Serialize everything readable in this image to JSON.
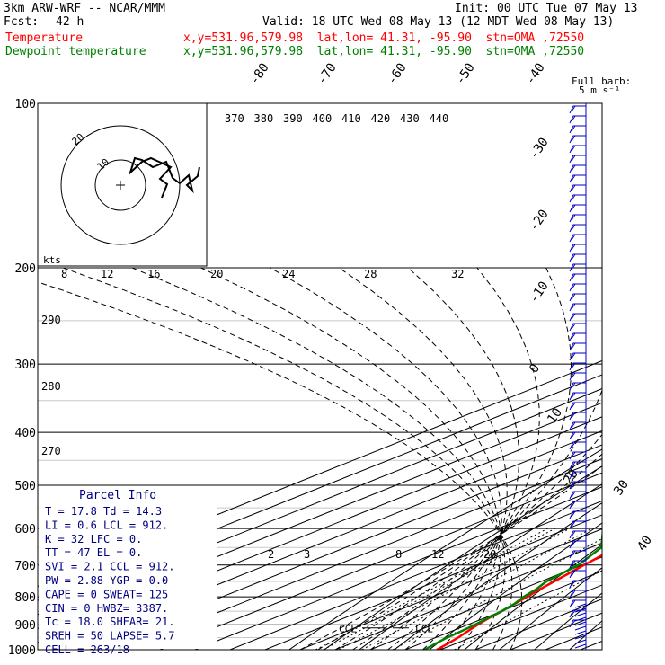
{
  "header": {
    "model": "3km ARW-WRF -- NCAR/MMM",
    "init": "Init: 00 UTC Tue 07 May 13",
    "fcst_label": "Fcst:",
    "fcst_value": "42 h",
    "valid": "Valid: 18 UTC Wed 08 May 13 (12 MDT Wed 08 May 13)",
    "temp_label": "Temperature",
    "temp_info": "x,y=531.96,579.98  lat,lon= 41.31, -95.90  stn=OMA ,72550",
    "dew_label": "Dewpoint temperature",
    "dew_info": "x,y=531.96,579.98  lat,lon= 41.31, -95.90  stn=OMA ,72550"
  },
  "colors": {
    "temperature": "#ff0000",
    "dewpoint": "#008000",
    "parcel_text": "#000080"
  },
  "barb_legend": {
    "title": "Full barb:",
    "value": "5 m s⁻¹"
  },
  "hodograph": {
    "units": "kts",
    "ring_labels": [
      "10",
      "20"
    ]
  },
  "parcel_info": {
    "title": "Parcel Info",
    "rows": [
      "T  =    17.8  Td =  14.3",
      "LI =     0.6  LCL =  912.",
      "K  =      32  LFC =    0.",
      "TT =      47  EL  =    0.",
      "SVI =    2.1  CCL =  912.",
      "PW =    2.88  YGP =   0.0",
      "CAPE =     0  SWEAT=  125",
      "CIN =      0  HWBZ= 3387.",
      "Tc =    18.0  SHEAR=  21.",
      "SREH =    50  LAPSE=  5.7",
      "CELL = 263/18"
    ]
  },
  "chart_data": {
    "type": "line",
    "diagram": "skew-T log-p",
    "y_axis": {
      "scale": "log",
      "range": [
        1000,
        100
      ],
      "tick_labels": [
        "100",
        "200",
        "300",
        "400",
        "500",
        "600",
        "700",
        "800",
        "900",
        "1000"
      ]
    },
    "isotherm_labels": [
      "-80",
      "-70",
      "-60",
      "-50",
      "-40",
      "-30",
      "-20",
      "-10",
      "0",
      "10",
      "20",
      "30",
      "40"
    ],
    "theta_labels": [
      "370",
      "380",
      "390",
      "400",
      "410",
      "420",
      "430",
      "440"
    ],
    "theta_side_labels": [
      "290",
      "280",
      "270"
    ],
    "mixing_ratio_labels": [
      "8",
      "12",
      "16",
      "20",
      "24",
      "28",
      "32"
    ],
    "mixing_ratio_labels_low": [
      "2",
      "3",
      "8",
      "12",
      "20"
    ],
    "annotations": [
      "CCL",
      "LCL"
    ],
    "series": [
      {
        "name": "Temperature",
        "points": [
          [
            1000,
            19
          ],
          [
            975,
            17.8
          ],
          [
            950,
            16.4
          ],
          [
            925,
            14.6
          ],
          [
            912,
            13.7
          ],
          [
            900,
            12.8
          ],
          [
            875,
            11.3
          ],
          [
            850,
            10
          ],
          [
            825,
            8.6
          ],
          [
            800,
            7
          ],
          [
            775,
            5.3
          ],
          [
            750,
            3.8
          ],
          [
            725,
            2.2
          ],
          [
            700,
            0.6
          ],
          [
            650,
            -2.6
          ],
          [
            600,
            -6
          ],
          [
            550,
            -9.8
          ],
          [
            500,
            -14.2
          ],
          [
            450,
            -19.4
          ],
          [
            400,
            -25.2
          ],
          [
            350,
            -31.8
          ],
          [
            300,
            -39.4
          ],
          [
            275,
            -43.8
          ],
          [
            250,
            -48
          ],
          [
            225,
            -51.8
          ],
          [
            210,
            -53.5
          ],
          [
            200,
            -54.5
          ],
          [
            180,
            -56
          ],
          [
            160,
            -57
          ],
          [
            140,
            -58
          ],
          [
            125,
            -58.8
          ],
          [
            110,
            -60
          ],
          [
            100,
            -61
          ]
        ]
      },
      {
        "name": "Dewpoint temperature",
        "points": [
          [
            1000,
            15.5
          ],
          [
            975,
            14.3
          ],
          [
            950,
            13.2
          ],
          [
            925,
            12.8
          ],
          [
            900,
            12
          ],
          [
            875,
            11
          ],
          [
            850,
            10
          ],
          [
            825,
            8.5
          ],
          [
            800,
            6
          ],
          [
            775,
            4.2
          ],
          [
            750,
            1.6
          ],
          [
            700,
            -1
          ],
          [
            650,
            -7
          ],
          [
            600,
            -20
          ],
          [
            550,
            -26
          ],
          [
            500,
            -24
          ],
          [
            450,
            -32
          ],
          [
            400,
            -42
          ],
          [
            350,
            -46
          ],
          [
            300,
            -52
          ],
          [
            275,
            -58
          ],
          [
            250,
            -60
          ],
          [
            225,
            -63
          ],
          [
            200,
            -67
          ],
          [
            180,
            -70
          ],
          [
            165,
            -73
          ],
          [
            150,
            -75
          ],
          [
            135,
            -76
          ],
          [
            120,
            -76
          ],
          [
            110,
            -77
          ],
          [
            100,
            -78
          ]
        ]
      }
    ]
  }
}
